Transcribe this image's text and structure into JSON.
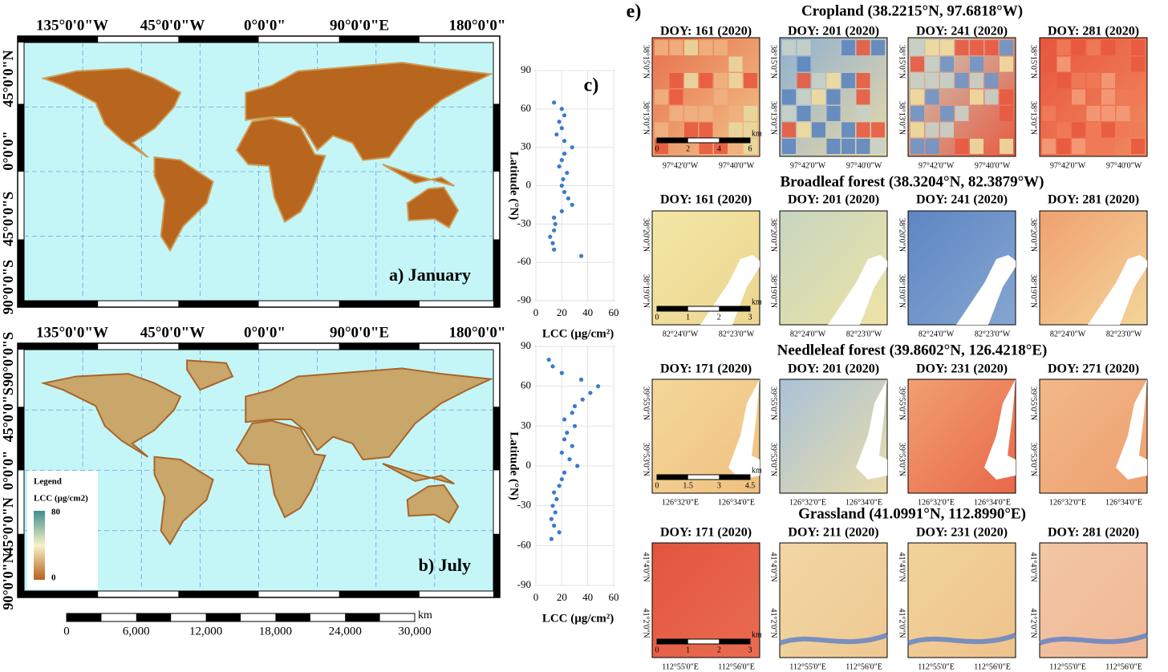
{
  "maps": [
    {
      "title": "a) January",
      "lon_labels": [
        "135°0'0\"W",
        "45°0'0\"W",
        "0°0'0\"",
        "90°0'0\"E",
        "180°0'0\""
      ],
      "lat_labels": [
        "45°0'0\"N",
        "0°0'0\"",
        "45°0'0\"S",
        "90°0'0\"S"
      ]
    },
    {
      "title": "b) July",
      "lon_labels": [
        "135°0'0\"W",
        "45°0'0\"W",
        "0°0'0\"",
        "90°0'0\"E",
        "180°0'0\""
      ],
      "lat_labels": [
        "90°0'0\"N",
        "45°0'0\"N",
        "0°0'0\"",
        "45°0'0\"S",
        "90°0'0\"S"
      ],
      "legend": {
        "title": "Legend",
        "label": "LCC (µg/cm2)",
        "max": "80",
        "min": "0"
      }
    }
  ],
  "scale_bar": {
    "unit": "km",
    "labels": [
      "0",
      "6,000",
      "12,000",
      "18,000",
      "24,000",
      "30,000"
    ]
  },
  "chart_data": [
    {
      "type": "scatter",
      "label": "c)",
      "x_label": "LCC (µg/cm²)",
      "y_label": "Latitude (°N)",
      "color": "#3a7cc8",
      "x": [
        14,
        20,
        22,
        18,
        20,
        16,
        22,
        28,
        22,
        20,
        18,
        24,
        21,
        20,
        22,
        25,
        28,
        20,
        14,
        15,
        14,
        11,
        13,
        14,
        35
      ],
      "values": [
        65,
        60,
        55,
        50,
        45,
        40,
        35,
        30,
        25,
        20,
        15,
        10,
        5,
        0,
        -5,
        -10,
        -15,
        -20,
        -25,
        -30,
        -35,
        -40,
        -45,
        -50,
        -55
      ],
      "xlim": [
        0,
        60
      ],
      "xticks": [
        0,
        20,
        40,
        60
      ],
      "ylim": [
        -90,
        90
      ],
      "yticks": [
        -90,
        -60,
        -30,
        0,
        30,
        60,
        90
      ],
      "grid": true
    },
    {
      "type": "scatter",
      "x_label": "LCC (µg/cm²)",
      "y_label": "Latitude (°N)",
      "color": "#3a7cc8",
      "x": [
        10,
        13,
        20,
        35,
        48,
        42,
        36,
        30,
        28,
        22,
        30,
        24,
        22,
        28,
        20,
        26,
        32,
        22,
        20,
        18,
        14,
        16,
        13,
        15,
        12,
        14,
        18,
        12
      ],
      "values": [
        80,
        75,
        70,
        65,
        60,
        55,
        50,
        45,
        40,
        35,
        30,
        25,
        20,
        15,
        10,
        5,
        0,
        -5,
        -10,
        -15,
        -20,
        -25,
        -30,
        -35,
        -40,
        -45,
        -50,
        -55
      ],
      "xlim": [
        0,
        60
      ],
      "xticks": [
        0,
        20,
        40,
        60
      ],
      "ylim": [
        -90,
        90
      ],
      "yticks": [
        -90,
        -60,
        -30,
        0,
        30,
        60,
        90
      ],
      "grid": true
    }
  ],
  "panel_e": {
    "label": "e)",
    "sites": [
      {
        "title": "Cropland (38.2215°N, 97.6818°W)",
        "doys": [
          "DOY: 161 (2020)",
          "DOY: 201 (2020)",
          "DOY: 241 (2020)",
          "DOY: 281 (2020)"
        ],
        "x_labels": [
          "97°42'0\"W",
          "97°40'0\"W"
        ],
        "y_labels": [
          "38°15'0\"N",
          "38°13'0\"N"
        ],
        "scale": {
          "unit": "km",
          "labels": [
            "0",
            "2",
            "4",
            "6"
          ]
        }
      },
      {
        "title": "Broadleaf forest (38.3204°N, 82.3879°W)",
        "doys": [
          "DOY: 161 (2020)",
          "DOY: 201 (2020)",
          "DOY: 241 (2020)",
          "DOY: 281 (2020)"
        ],
        "x_labels": [
          "82°24'0\"W",
          "82°23'0\"W"
        ],
        "y_labels": [
          "38°20'0\"N",
          "38°19'0\"N"
        ],
        "scale": {
          "unit": "km",
          "labels": [
            "0",
            "1",
            "2",
            "3"
          ]
        }
      },
      {
        "title": "Needleleaf forest (39.8602°N, 126.4218°E)",
        "doys": [
          "DOY: 171 (2020)",
          "DOY: 201 (2020)",
          "DOY: 231 (2020)",
          "DOY: 271 (2020)"
        ],
        "x_labels": [
          "126°32'0\"E",
          "126°34'0\"E"
        ],
        "y_labels": [
          "39°55'0\"N",
          "39°53'0\"N"
        ],
        "scale": {
          "unit": "km",
          "labels": [
            "0",
            "1.5",
            "3",
            "4.5"
          ]
        }
      },
      {
        "title": "Grassland (41.0991°N, 112.8990°E)",
        "doys": [
          "DOY: 171 (2020)",
          "DOY: 211 (2020)",
          "DOY: 231 (2020)",
          "DOY: 281 (2020)"
        ],
        "x_labels": [
          "112°55'0\"E",
          "112°56'0\"E"
        ],
        "y_labels": [
          "41°4'0\"N",
          "41°2'0\"N"
        ],
        "scale": {
          "unit": "km",
          "labels": [
            "0",
            "1",
            "2",
            "3"
          ]
        }
      }
    ]
  }
}
